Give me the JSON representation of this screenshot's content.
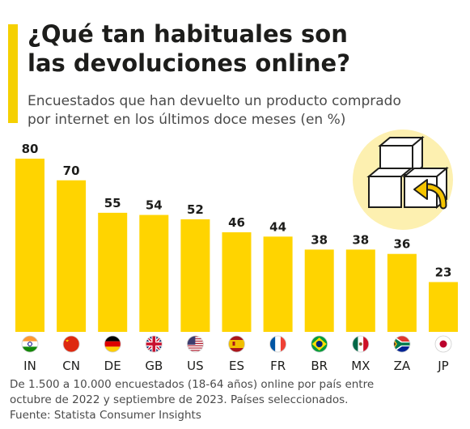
{
  "title_line1": "¿Qué tan habituales son",
  "title_line2": "las devoluciones online?",
  "subtitle_line1": "Encuestados que han devuelto un producto comprado",
  "subtitle_line2": "por internet en los últimos doce meses (en %)",
  "footnote_line1": "De 1.500 a 10.000 encuestados (18-64 años) online por país entre",
  "footnote_line2": "octubre de 2022 y septiembre de 2023. Países seleccionados.",
  "source": "Fuente: Statista Consumer Insights",
  "colors": {
    "bar": "#ffd400",
    "accent": "#f5d000",
    "icon_bg": "#fdf0b0",
    "text": "#1d1d1b"
  },
  "icon": "boxes-return-arrow-icon",
  "chart_data": {
    "type": "bar",
    "title": "¿Qué tan habituales son las devoluciones online?",
    "categories": [
      "IN",
      "CN",
      "DE",
      "GB",
      "US",
      "ES",
      "FR",
      "BR",
      "MX",
      "ZA",
      "JP"
    ],
    "values": [
      80,
      70,
      55,
      54,
      52,
      46,
      44,
      38,
      38,
      36,
      23
    ],
    "ylim": [
      0,
      80
    ],
    "grid": false,
    "legend": "none",
    "data_labels": true
  }
}
